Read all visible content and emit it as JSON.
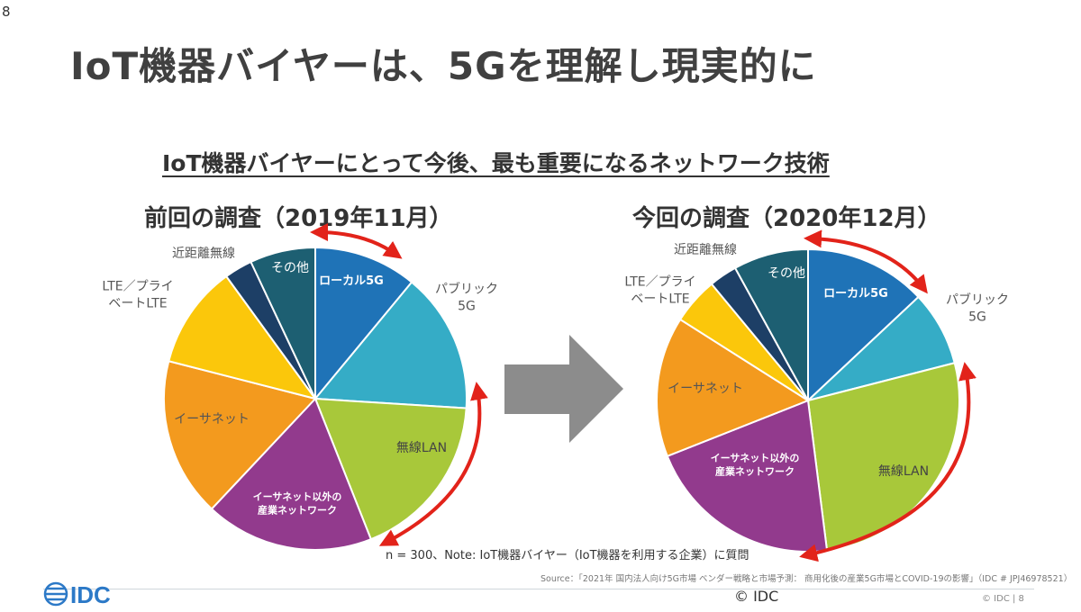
{
  "slide_number_top": "8",
  "title": "IoT機器バイヤーは、5Gを理解し現実的に",
  "subtitle": "IoT機器バイヤーにとって今後、最も重要になるネットワーク技術",
  "note": "n = 300、Note: IoT機器バイヤー（IoT機器を利用する企業）に質問",
  "source": "Source：「2021年 国内法人向け5G市場 ベンダー戦略と市場予測： 商用化後の産業5G市場とCOVID-19の影響」（IDC # JPJ46978521）",
  "footer": {
    "logo_text": "IDC",
    "copyright": "© IDC",
    "right_text": "© IDC |  8"
  },
  "colors": {
    "local5g": "#1f73b7",
    "public5g": "#35acc6",
    "wireless_lan": "#a8c83a",
    "industrial": "#923a8d",
    "ethernet": "#f39a1e",
    "lte": "#fbc70b",
    "near_field": "#1d3f66",
    "other": "#1d5f72",
    "arrow_red": "#e2231a",
    "big_arrow": "#8c8c8c",
    "logo": "#2c79c7"
  },
  "chart_data": [
    {
      "type": "pie",
      "title": "前回の調査（2019年11月）",
      "slices": [
        {
          "key": "local5g",
          "label": "ローカル5G",
          "value": 11
        },
        {
          "key": "public5g",
          "label": "パブリック 5G",
          "value": 15
        },
        {
          "key": "wireless_lan",
          "label": "無線LAN",
          "value": 18
        },
        {
          "key": "industrial",
          "label": "イーサネット以外の 産業ネットワーク",
          "value": 18
        },
        {
          "key": "ethernet",
          "label": "イーサネット",
          "value": 17
        },
        {
          "key": "lte",
          "label": "LTE／プライ ベートLTE",
          "value": 11
        },
        {
          "key": "near_field",
          "label": "近距離無線",
          "value": 3
        },
        {
          "key": "other",
          "label": "その他",
          "value": 7
        }
      ]
    },
    {
      "type": "pie",
      "title": "今回の調査（2020年12月）",
      "slices": [
        {
          "key": "local5g",
          "label": "ローカル5G",
          "value": 13
        },
        {
          "key": "public5g",
          "label": "パブリック 5G",
          "value": 8
        },
        {
          "key": "wireless_lan",
          "label": "無線LAN",
          "value": 27
        },
        {
          "key": "industrial",
          "label": "イーサネット以外の 産業ネットワーク",
          "value": 21
        },
        {
          "key": "ethernet",
          "label": "イーサネット",
          "value": 15
        },
        {
          "key": "lte",
          "label": "LTE／プライ ベートLTE",
          "value": 5
        },
        {
          "key": "near_field",
          "label": "近距離無線",
          "value": 3
        },
        {
          "key": "other",
          "label": "その他",
          "value": 8
        }
      ]
    }
  ]
}
